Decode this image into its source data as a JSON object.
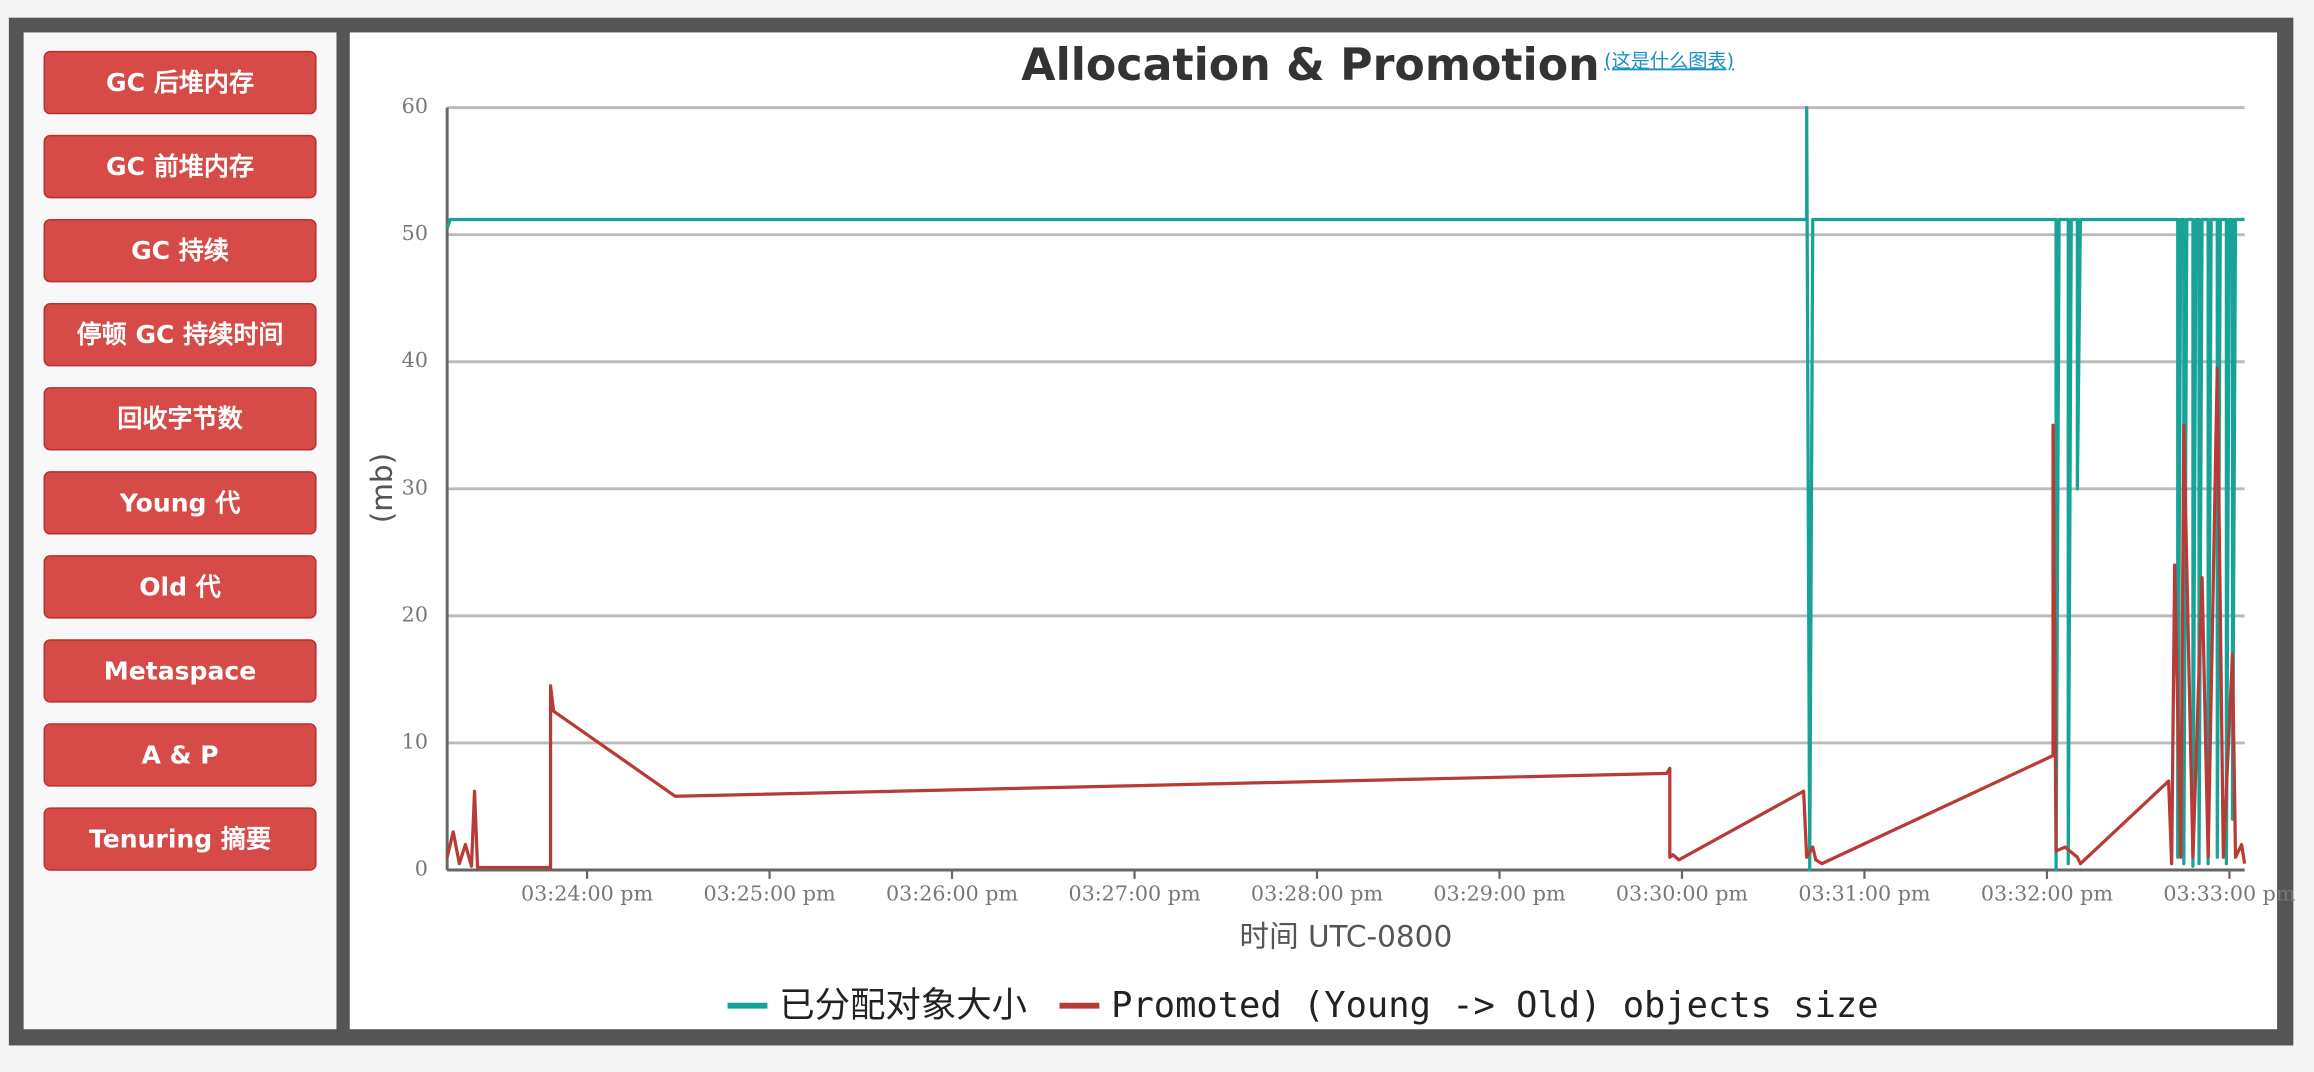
{
  "sidebar": {
    "buttons": [
      "GC 后堆内存",
      "GC 前堆内存",
      "GC 持续",
      "停顿 GC 持续时间",
      "回收字节数",
      "Young 代",
      "Old 代",
      "Metaspace",
      "A & P",
      "Tenuring 摘要"
    ]
  },
  "help_link": "(这是什么图表)",
  "chart_data": {
    "type": "line",
    "title": "Allocation & Promotion",
    "x_label": "时间 UTC-0800",
    "y_label": "(mb)",
    "xlim": [
      "03:23:14 pm",
      "03:33:05 pm"
    ],
    "xticks": [
      "03:24:00 pm",
      "03:25:00 pm",
      "03:26:00 pm",
      "03:27:00 pm",
      "03:28:00 pm",
      "03:29:00 pm",
      "03:30:00 pm",
      "03:31:00 pm",
      "03:32:00 pm",
      "03:33:00 pm"
    ],
    "ylim": [
      0,
      60
    ],
    "yticks": [
      0,
      10,
      20,
      30,
      40,
      50,
      60
    ],
    "grid": true,
    "legend": "bottom",
    "series": [
      {
        "name": "已分配对象大小",
        "color": "#17a398",
        "x": [
          "03:23:14 pm",
          "03:23:15 pm",
          "03:30:41 pm",
          "03:30:41 pm",
          "03:30:42 pm",
          "03:30:43 pm",
          "03:32:03 pm",
          "03:32:03 pm",
          "03:32:04 pm",
          "03:32:07 pm",
          "03:32:07 pm",
          "03:32:08 pm",
          "03:32:10 pm",
          "03:32:10 pm",
          "03:32:11 pm",
          "03:32:43 pm",
          "03:32:43 pm",
          "03:32:44 pm",
          "03:32:45 pm",
          "03:32:45 pm",
          "03:32:46 pm",
          "03:32:48 pm",
          "03:32:48 pm",
          "03:32:49 pm",
          "03:32:50 pm",
          "03:32:50 pm",
          "03:32:51 pm",
          "03:32:53 pm",
          "03:32:53 pm",
          "03:32:54 pm",
          "03:32:56 pm",
          "03:32:56 pm",
          "03:32:57 pm",
          "03:32:59 pm",
          "03:32:59 pm",
          "03:33:00 pm",
          "03:33:01 pm",
          "03:33:01 pm",
          "03:33:02 pm",
          "03:33:05 pm"
        ],
        "values": [
          50.5,
          51.2,
          51.2,
          60,
          0,
          51.2,
          51.2,
          0,
          51.2,
          51.2,
          0.5,
          51.2,
          51.2,
          30,
          51.2,
          51.2,
          1,
          51.2,
          51.2,
          0.5,
          51.2,
          51.2,
          0.3,
          51.2,
          51.2,
          0.5,
          51.2,
          51.2,
          0.5,
          51.2,
          51.2,
          1,
          51.2,
          51.2,
          0.5,
          51.2,
          51.2,
          4,
          51.2,
          51.2
        ]
      },
      {
        "name": "Promoted (Young -> Old) objects size",
        "color": "#b83b36",
        "x": [
          "03:23:14 pm",
          "03:23:16 pm",
          "03:23:18 pm",
          "03:23:20 pm",
          "03:23:22 pm",
          "03:23:23 pm",
          "03:23:24 pm",
          "03:23:48 pm",
          "03:23:48 pm",
          "03:23:49 pm",
          "03:24:29 pm",
          "03:29:55 pm",
          "03:29:56 pm",
          "03:29:56 pm",
          "03:29:57 pm",
          "03:29:59 pm",
          "03:30:40 pm",
          "03:30:41 pm",
          "03:30:43 pm",
          "03:30:44 pm",
          "03:30:46 pm",
          "03:32:02 pm",
          "03:32:02 pm",
          "03:32:03 pm",
          "03:32:06 pm",
          "03:32:10 pm",
          "03:32:11 pm",
          "03:32:40 pm",
          "03:32:41 pm",
          "03:32:42 pm",
          "03:32:44 pm",
          "03:32:45 pm",
          "03:32:48 pm",
          "03:32:51 pm",
          "03:32:53 pm",
          "03:32:56 pm",
          "03:32:58 pm",
          "03:33:01 pm",
          "03:33:02 pm",
          "03:33:04 pm",
          "03:33:05 pm"
        ],
        "values": [
          1,
          3,
          0.5,
          2,
          0.3,
          6.2,
          0.2,
          0.2,
          14.5,
          12.5,
          5.8,
          7.6,
          8,
          1,
          1.2,
          0.8,
          6.2,
          1,
          1.8,
          0.8,
          0.5,
          9,
          35,
          1.5,
          1.8,
          1,
          0.5,
          7,
          0.5,
          24,
          1,
          35,
          1,
          23,
          1,
          39.5,
          1,
          17,
          1,
          2,
          0.5
        ]
      }
    ]
  }
}
